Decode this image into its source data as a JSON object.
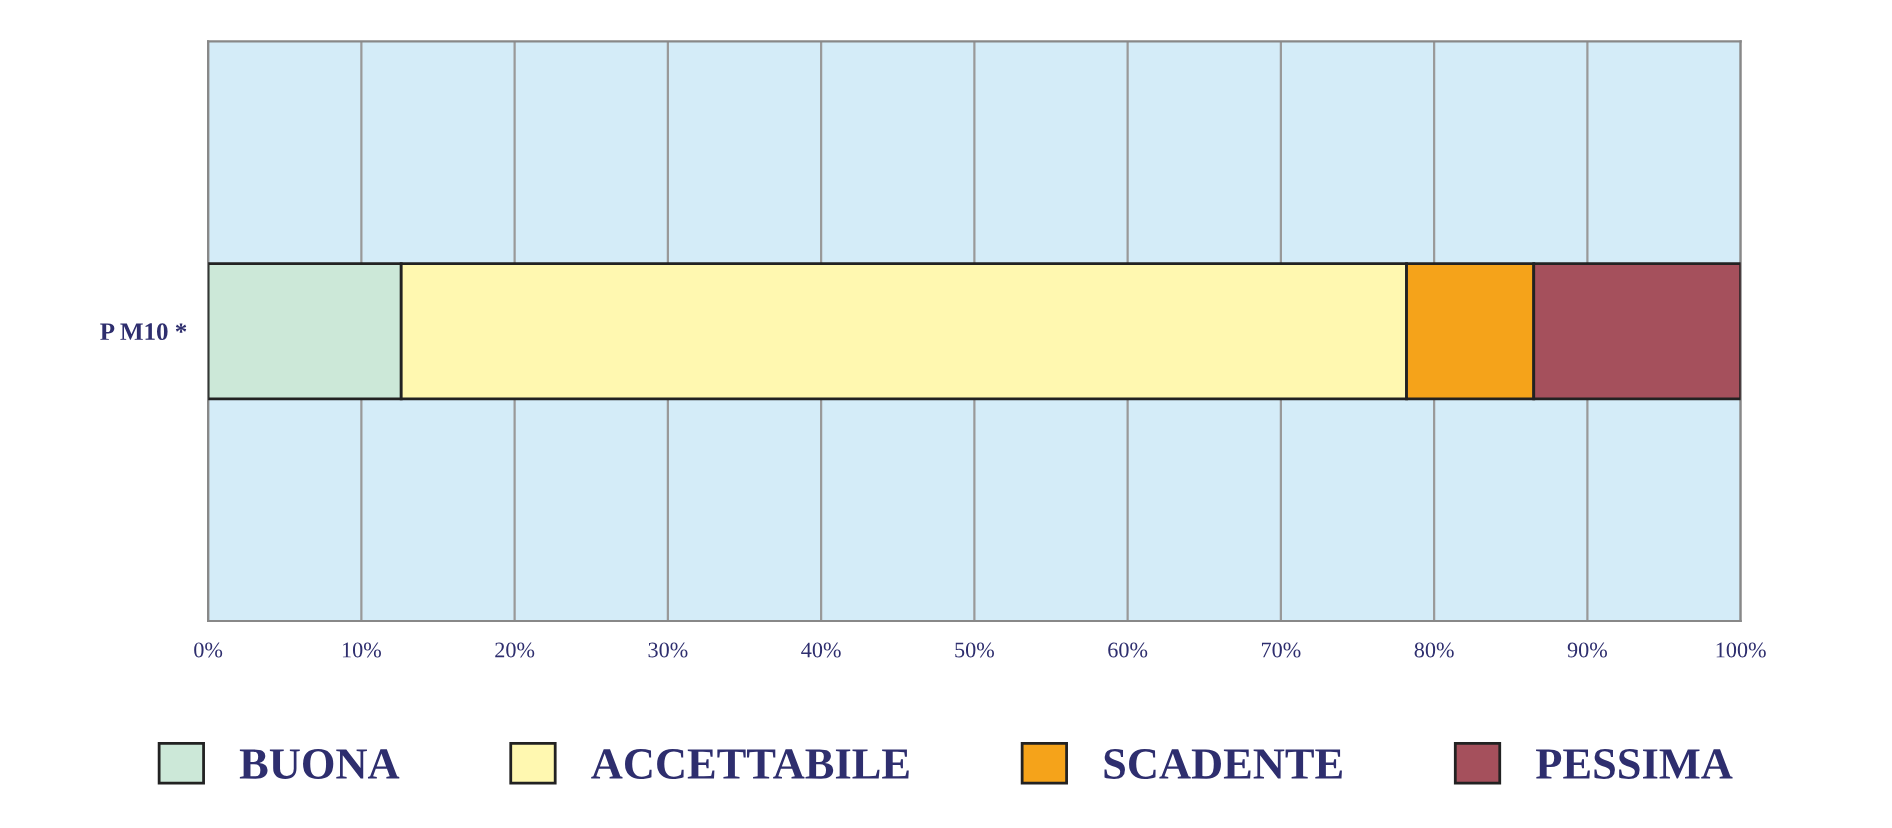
{
  "chart_data": {
    "type": "bar",
    "orientation": "horizontal",
    "stacked": true,
    "categories": [
      "P M10 *"
    ],
    "series": [
      {
        "name": "BUONA",
        "color": "#cce8d8",
        "values": [
          12.6
        ]
      },
      {
        "name": "ACCETTABILE",
        "color": "#fff8b0",
        "values": [
          65.6
        ]
      },
      {
        "name": "SCADENTE",
        "color": "#f5a31a",
        "values": [
          8.3
        ]
      },
      {
        "name": "PESSIMA",
        "color": "#a5505c",
        "values": [
          13.5
        ]
      }
    ],
    "xlim": [
      0,
      100
    ],
    "xticks": [
      {
        "value": 0,
        "label": "0%"
      },
      {
        "value": 10,
        "label": "10%"
      },
      {
        "value": 20,
        "label": "20%"
      },
      {
        "value": 30,
        "label": "30%"
      },
      {
        "value": 40,
        "label": "40%"
      },
      {
        "value": 50,
        "label": "50%"
      },
      {
        "value": 60,
        "label": "60%"
      },
      {
        "value": 70,
        "label": "70%"
      },
      {
        "value": 80,
        "label": "80%"
      },
      {
        "value": 90,
        "label": "90%"
      },
      {
        "value": 100,
        "label": "100%"
      }
    ],
    "grid": "x",
    "legend": "bottom"
  }
}
